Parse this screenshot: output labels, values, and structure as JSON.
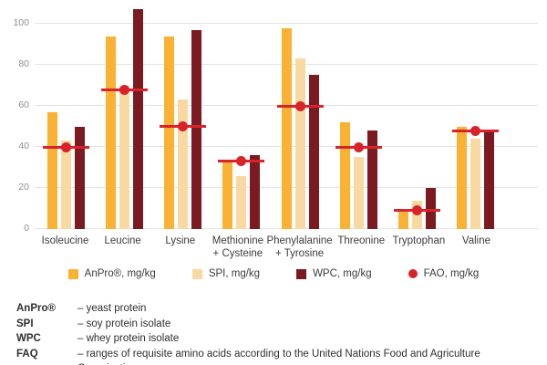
{
  "colors": {
    "anpro_orange": "#F9B233",
    "spi_tan": "#F8D9A2",
    "wpc_maroon": "#7B1B21",
    "fao_red": "#D8232A",
    "gridline": "#e3e3e3",
    "text_dark": "#3c3c3b",
    "axis_gray": "#8f8f8f"
  },
  "chart_data": {
    "type": "bar",
    "title": "",
    "xlabel": "",
    "ylabel": "",
    "ylim": [
      0,
      108
    ],
    "yticks": [
      0,
      20,
      40,
      60,
      80,
      100
    ],
    "grid": true,
    "legend_position": "bottom",
    "categories": [
      "Isoleucine",
      "Leucine",
      "Lysine",
      "Methionine\n+ Cysteine",
      "Phenylalanine\n+ Tyrosine",
      "Threonine",
      "Tryptophan",
      "Valine"
    ],
    "series": [
      {
        "name": "AnPro®, mg/kg",
        "marker": "square",
        "color": "#F9B233",
        "values": [
          57,
          94,
          94,
          33,
          98,
          52,
          9,
          50
        ]
      },
      {
        "name": "SPI, mg/kg",
        "marker": "square",
        "color": "#F8D9A2",
        "values": [
          43,
          70,
          63,
          26,
          83,
          35,
          14,
          44
        ]
      },
      {
        "name": "WPC, mg/kg",
        "marker": "square",
        "color": "#7B1B21",
        "values": [
          50,
          107,
          97,
          36,
          75,
          48,
          20,
          48
        ]
      },
      {
        "name": "FAO, mg/kg",
        "marker": "circle",
        "color": "#D8232A",
        "values": [
          40,
          68,
          50,
          33,
          60,
          40,
          9,
          48
        ]
      }
    ]
  },
  "footnotes": [
    {
      "term": "AnPro®",
      "def": "– yeast protein"
    },
    {
      "term": "SPI",
      "def": "– soy protein isolate"
    },
    {
      "term": "WPC",
      "def": "– whey protein isolate"
    },
    {
      "term": "FAQ",
      "def": "– ranges of requisite amino acids according to the United Nations Food and Agriculture Organization"
    }
  ]
}
